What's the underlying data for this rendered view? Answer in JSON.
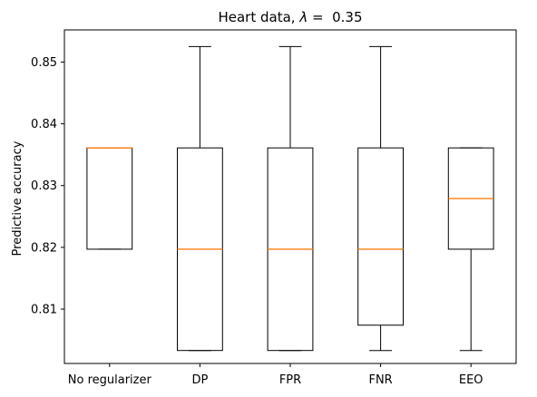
{
  "chart_data": {
    "type": "box",
    "title": "Heart data, λ =  0.35",
    "title_parts": {
      "prefix": "Heart data, ",
      "symbol": "λ",
      "suffix": " =  0.35"
    },
    "xlabel": "",
    "ylabel": "Predictive accuracy",
    "ylim": [
      0.8012,
      0.8552
    ],
    "yticks": [
      "0.81",
      "0.82",
      "0.83",
      "0.84",
      "0.85"
    ],
    "ytick_values": [
      0.81,
      0.82,
      0.83,
      0.84,
      0.85
    ],
    "grid": false,
    "median_color": "#ff7f0e",
    "box_color": "#000000",
    "categories": [
      "No regularizer",
      "DP",
      "FPR",
      "FNR",
      "EEO"
    ],
    "boxes": [
      {
        "name": "No regularizer",
        "whisker_low": 0.8197,
        "q1": 0.8197,
        "median": 0.8361,
        "q3": 0.8361,
        "whisker_high": 0.8361
      },
      {
        "name": "DP",
        "whisker_low": 0.8033,
        "q1": 0.8033,
        "median": 0.8197,
        "q3": 0.8361,
        "whisker_high": 0.8525
      },
      {
        "name": "FPR",
        "whisker_low": 0.8033,
        "q1": 0.8033,
        "median": 0.8197,
        "q3": 0.8361,
        "whisker_high": 0.8525
      },
      {
        "name": "FNR",
        "whisker_low": 0.8033,
        "q1": 0.8074,
        "median": 0.8197,
        "q3": 0.8361,
        "whisker_high": 0.8525
      },
      {
        "name": "EEO",
        "whisker_low": 0.8033,
        "q1": 0.8197,
        "median": 0.8279,
        "q3": 0.8361,
        "whisker_high": 0.8361
      }
    ]
  }
}
